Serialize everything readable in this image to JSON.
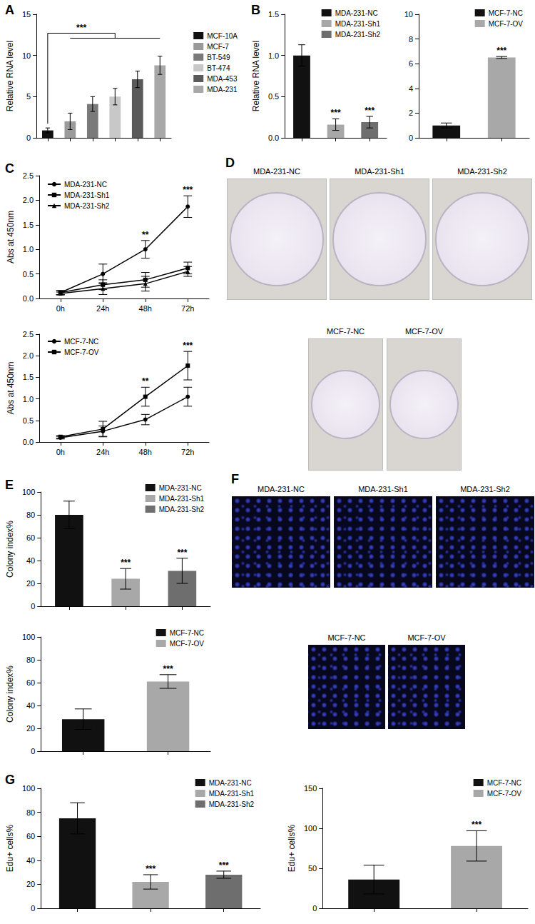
{
  "chart_data": [
    {
      "type": "bar",
      "title": "A",
      "ylabel": "Relative RNA level",
      "categories": [
        "MCF-10A",
        "MCF-7",
        "BT-549",
        "BT-474",
        "MDA-453",
        "MDA-231"
      ],
      "values": [
        0.9,
        2.0,
        4.1,
        5.0,
        7.1,
        8.8
      ],
      "errors": [
        0.3,
        1.0,
        0.9,
        1.0,
        1.0,
        1.1
      ],
      "colors": [
        "#111111",
        "#9a9a9a",
        "#7a7a7a",
        "#c8c8c8",
        "#5a5a5a",
        "#a8a8a8"
      ],
      "ylim": [
        0,
        15
      ],
      "yticks": [
        0,
        5,
        10,
        15
      ],
      "grid": false,
      "legend": "right",
      "tick_labels": "y",
      "annotations": [
        {
          "text": "***",
          "from": "MCF-10A",
          "to": "MDA-231"
        }
      ]
    },
    {
      "type": "bar",
      "title": "B",
      "ylabel": "Relative RNA level",
      "categories": [
        "MDA-231-NC",
        "MDA-231-Sh1",
        "MDA-231-Sh2"
      ],
      "values": [
        1.0,
        0.16,
        0.19
      ],
      "errors": [
        0.13,
        0.07,
        0.07
      ],
      "colors": [
        "#111111",
        "#a8a8a8",
        "#6e6e6e"
      ],
      "ylim": [
        0,
        1.5
      ],
      "yticks": [
        {
          "value": 0,
          "label": "0.0"
        },
        0.5,
        {
          "value": 1,
          "label": "1.0"
        },
        1.5
      ],
      "grid": false,
      "legend": "upper right",
      "tick_labels": "y",
      "annotations": [
        {
          "text": "***",
          "category": "MDA-231-Sh1"
        },
        {
          "text": "***",
          "category": "MDA-231-Sh2"
        }
      ]
    },
    {
      "type": "bar",
      "categories": [
        "MCF-7-NC",
        "MCF-7-OV"
      ],
      "values": [
        1.0,
        6.5
      ],
      "errors": [
        0.2,
        0.08
      ],
      "colors": [
        "#111111",
        "#a8a8a8"
      ],
      "ylim": [
        0,
        10
      ],
      "yticks": [
        0,
        2,
        4,
        6,
        8,
        10
      ],
      "grid": false,
      "legend": "upper right",
      "tick_labels": "y",
      "annotations": [
        {
          "text": "***",
          "category": "MCF-7-OV"
        }
      ]
    },
    {
      "type": "line",
      "title": "C",
      "ylabel": "Abs at 450nm",
      "categories": [
        "0h",
        "24h",
        "48h",
        "72h"
      ],
      "series": [
        {
          "name": "MDA-231-NC",
          "color": "#000000",
          "marker": "circle",
          "values": [
            0.12,
            0.5,
            1.0,
            1.87
          ],
          "errors": [
            0.04,
            0.2,
            0.18,
            0.22
          ]
        },
        {
          "name": "MDA-231-Sh1",
          "color": "#000000",
          "marker": "square",
          "values": [
            0.12,
            0.28,
            0.38,
            0.62
          ],
          "errors": [
            0.04,
            0.1,
            0.15,
            0.12
          ]
        },
        {
          "name": "MDA-231-Sh2",
          "color": "#000000",
          "marker": "triangle",
          "values": [
            0.1,
            0.2,
            0.3,
            0.55
          ],
          "errors": [
            0.03,
            0.12,
            0.15,
            0.1
          ]
        }
      ],
      "ylim": [
        0,
        2.5
      ],
      "yticks": [
        {
          "value": 0,
          "label": "0.0"
        },
        0.5,
        {
          "value": 1,
          "label": "1.0"
        },
        1.5,
        {
          "value": 2,
          "label": "2.0"
        },
        2.5
      ],
      "grid": false,
      "legend": "upper left",
      "tick_labels": true,
      "annotations": [
        {
          "text": "**",
          "x": "48h"
        },
        {
          "text": "***",
          "x": "72h"
        }
      ]
    },
    {
      "type": "line",
      "ylabel": "Abs at 450nm",
      "categories": [
        "0h",
        "24h",
        "48h",
        "72h"
      ],
      "series": [
        {
          "name": "MCF-7-NC",
          "color": "#000000",
          "marker": "circle",
          "values": [
            0.1,
            0.25,
            0.52,
            1.05
          ],
          "errors": [
            0.03,
            0.12,
            0.12,
            0.22
          ]
        },
        {
          "name": "MCF-7-OV",
          "color": "#000000",
          "marker": "square",
          "values": [
            0.12,
            0.3,
            1.05,
            1.77
          ],
          "errors": [
            0.03,
            0.18,
            0.22,
            0.33
          ]
        }
      ],
      "ylim": [
        0,
        2.5
      ],
      "yticks": [
        {
          "value": 0,
          "label": "0.0"
        },
        0.5,
        {
          "value": 1,
          "label": "1.0"
        },
        1.5,
        {
          "value": 2,
          "label": "2.0"
        },
        2.5
      ],
      "grid": false,
      "legend": "upper left",
      "tick_labels": true,
      "annotations": [
        {
          "text": "**",
          "x": "48h"
        },
        {
          "text": "***",
          "x": "72h"
        }
      ]
    },
    {
      "type": "bar",
      "title": "E",
      "ylabel": "Colony index%",
      "categories": [
        "MDA-231-NC",
        "MDA-231-Sh1",
        "MDA-231-Sh2"
      ],
      "values": [
        80,
        24,
        31
      ],
      "errors": [
        12,
        9,
        11
      ],
      "colors": [
        "#111111",
        "#a8a8a8",
        "#6e6e6e"
      ],
      "ylim": [
        0,
        100
      ],
      "yticks": [
        0,
        20,
        40,
        60,
        80,
        100
      ],
      "grid": false,
      "legend": "upper right",
      "tick_labels": "y",
      "annotations": [
        {
          "text": "***",
          "category": "MDA-231-Sh1"
        },
        {
          "text": "***",
          "category": "MDA-231-Sh2"
        }
      ]
    },
    {
      "type": "bar",
      "ylabel": "Colony index%",
      "categories": [
        "MCF-7-NC",
        "MCF-7-OV"
      ],
      "values": [
        28,
        61
      ],
      "errors": [
        9,
        6
      ],
      "colors": [
        "#111111",
        "#a8a8a8"
      ],
      "ylim": [
        0,
        100
      ],
      "yticks": [
        0,
        20,
        40,
        60,
        80,
        100
      ],
      "grid": false,
      "legend": "upper right",
      "tick_labels": "y",
      "annotations": [
        {
          "text": "***",
          "category": "MCF-7-OV"
        }
      ]
    },
    {
      "type": "bar",
      "title": "G",
      "ylabel": "Edu+ cells%",
      "categories": [
        "MDA-231-NC",
        "MDA-231-Sh1",
        "MDA-231-Sh2"
      ],
      "values": [
        75,
        22,
        28
      ],
      "errors": [
        13,
        6,
        3
      ],
      "colors": [
        "#111111",
        "#a8a8a8",
        "#6e6e6e"
      ],
      "ylim": [
        0,
        100
      ],
      "yticks": [
        0,
        20,
        40,
        60,
        80,
        100
      ],
      "grid": false,
      "legend": "upper right",
      "tick_labels": "y",
      "annotations": [
        {
          "text": "***",
          "category": "MDA-231-Sh1"
        },
        {
          "text": "***",
          "category": "MDA-231-Sh2"
        }
      ]
    },
    {
      "type": "bar",
      "ylabel": "Edu+ cells%",
      "categories": [
        "MCF-7-NC",
        "MCF-7-OV"
      ],
      "values": [
        36,
        78
      ],
      "errors": [
        18,
        19
      ],
      "colors": [
        "#111111",
        "#a8a8a8"
      ],
      "ylim": [
        0,
        150
      ],
      "yticks": [
        0,
        50,
        100,
        150
      ],
      "grid": false,
      "legend": "upper right",
      "tick_labels": "y",
      "annotations": [
        {
          "text": "***",
          "category": "MCF-7-OV"
        }
      ]
    }
  ],
  "images": [
    {
      "panel": "D",
      "kind": "colony plates",
      "rows": [
        [
          "MDA-231-NC",
          "MDA-231-Sh1",
          "MDA-231-Sh2"
        ],
        [
          "MCF-7-NC",
          "MCF-7-OV"
        ]
      ]
    },
    {
      "panel": "F",
      "kind": "fluorescence",
      "rows": [
        [
          "MDA-231-NC",
          "MDA-231-Sh1",
          "MDA-231-Sh2"
        ],
        [
          "MCF-7-NC",
          "MCF-7-OV"
        ]
      ]
    }
  ]
}
